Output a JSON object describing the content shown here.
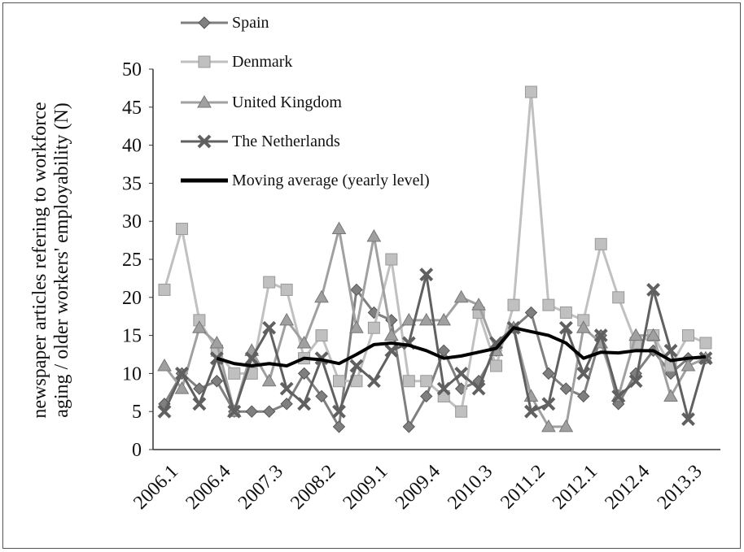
{
  "chart_data": {
    "type": "line",
    "ylabel": "newspaper articles refering to workforce aging / older workers' employability (N)",
    "categories": [
      "2006.1",
      null,
      null,
      "2006.4",
      null,
      null,
      "2007.3",
      null,
      null,
      "2008.2",
      null,
      null,
      "2009.1",
      null,
      null,
      "2009.4",
      null,
      null,
      "2010.3",
      null,
      null,
      "2011.2",
      null,
      null,
      "2012.1",
      null,
      null,
      "2012.4",
      null,
      null,
      "2013.3",
      null
    ],
    "ylim": [
      0,
      50
    ],
    "yticks": [
      0,
      5,
      10,
      15,
      20,
      25,
      30,
      35,
      40,
      45,
      50
    ],
    "grid": false,
    "series": [
      {
        "name": "Spain",
        "color": "#7f7f7f",
        "marker": "diamond",
        "values": [
          6,
          10,
          8,
          9,
          5,
          5,
          5,
          6,
          10,
          7,
          3,
          21,
          18,
          17,
          3,
          7,
          13,
          8,
          9,
          13,
          16,
          18,
          10,
          8,
          7,
          15,
          6,
          10,
          13,
          10,
          12,
          12
        ]
      },
      {
        "name": "Denmark",
        "color": "#c0c0c0",
        "marker": "square",
        "values": [
          21,
          29,
          17,
          13,
          10,
          10,
          22,
          21,
          12,
          15,
          9,
          9,
          16,
          25,
          9,
          9,
          7,
          5,
          18,
          11,
          19,
          47,
          19,
          18,
          17,
          27,
          20,
          14,
          15,
          11,
          15,
          14
        ]
      },
      {
        "name": "United Kingdom",
        "color": "#a0a0a0",
        "marker": "triangle",
        "values": [
          11,
          8,
          16,
          14,
          5,
          13,
          9,
          17,
          14,
          20,
          29,
          16,
          28,
          15,
          17,
          17,
          17,
          20,
          19,
          13,
          16,
          7,
          3,
          3,
          16,
          14,
          7,
          15,
          15,
          7,
          11,
          12
        ]
      },
      {
        "name": "The Netherlands",
        "color": "#606060",
        "marker": "x",
        "values": [
          5,
          10,
          6,
          12,
          5,
          12,
          16,
          8,
          6,
          12,
          5,
          11,
          9,
          13,
          14,
          23,
          8,
          10,
          8,
          14,
          16,
          5,
          6,
          16,
          10,
          15,
          7,
          9,
          21,
          13,
          4,
          12
        ]
      },
      {
        "name": "Moving average (yearly level)",
        "color": "#000000",
        "marker": "none",
        "values": [
          null,
          null,
          null,
          12,
          11.3,
          11,
          11.3,
          11,
          12,
          11.8,
          11.3,
          12.5,
          13.8,
          14,
          13.7,
          13,
          12,
          12.3,
          12.8,
          13.3,
          16,
          15.5,
          15,
          14,
          12,
          12.8,
          12.7,
          13,
          13,
          11.7,
          12,
          12.2
        ]
      }
    ]
  }
}
